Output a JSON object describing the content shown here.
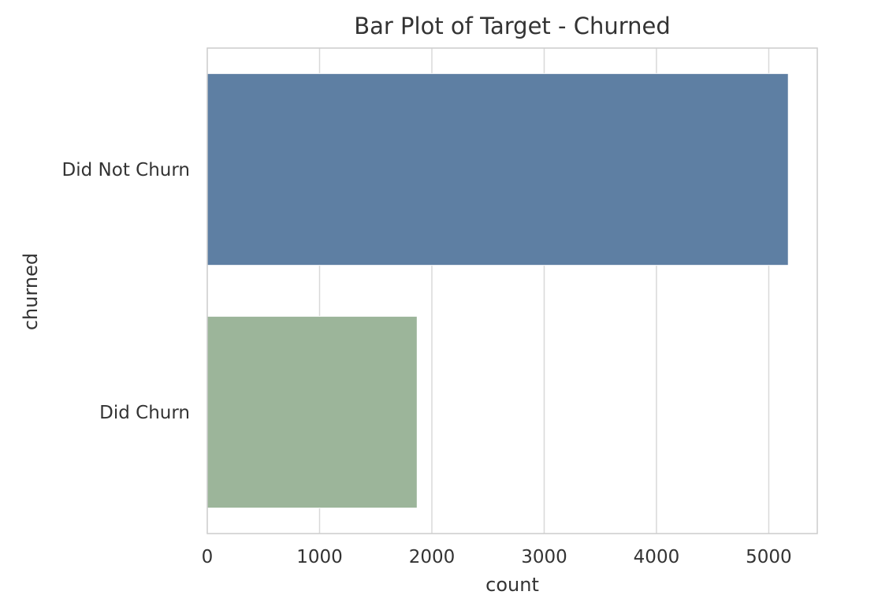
{
  "chart_data": {
    "type": "bar",
    "orientation": "horizontal",
    "title": "Bar Plot of Target - Churned",
    "xlabel": "count",
    "ylabel": "churned",
    "categories": [
      "Did Not Churn",
      "Did Churn"
    ],
    "values": [
      5174,
      1869
    ],
    "colors": [
      "#5e7fa3",
      "#9cb59a"
    ],
    "xlim": [
      0,
      5432
    ],
    "xticks": [
      0,
      1000,
      2000,
      3000,
      4000,
      5000
    ],
    "grid": true,
    "grid_axis": "x",
    "legend": "none"
  }
}
